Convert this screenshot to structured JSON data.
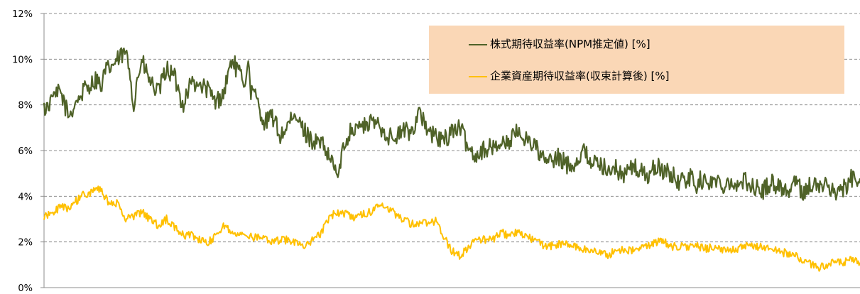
{
  "chart_data": {
    "type": "line",
    "title": "",
    "xlabel": "",
    "ylabel": "",
    "ylim": [
      0,
      12
    ],
    "y_ticks": [
      "0%",
      "2%",
      "4%",
      "6%",
      "8%",
      "10%",
      "12%"
    ],
    "grid": "horizontal dashed",
    "legend_position": "top-right",
    "x_index_range": [
      0,
      100
    ],
    "series": [
      {
        "name": "株式期待収益率(NPM推定値) [%]",
        "color": "#4f6228",
        "x": [
          0,
          2,
          3,
          5,
          6,
          8,
          10,
          11,
          12,
          13,
          14,
          15,
          16,
          17,
          18,
          20,
          21,
          22,
          23,
          24,
          26,
          27,
          28,
          29,
          30,
          31,
          32,
          33,
          34,
          35,
          36,
          37,
          38,
          39,
          40,
          41,
          42,
          43,
          44,
          45,
          46,
          47,
          48,
          49,
          50,
          51,
          52,
          53,
          54,
          55,
          56,
          57,
          58,
          60,
          61,
          62,
          63,
          64,
          65,
          66,
          67,
          68,
          69,
          70,
          71,
          72,
          73,
          74,
          75,
          76,
          77,
          78,
          79,
          80,
          81,
          82,
          83,
          84,
          85,
          86,
          87,
          88,
          89,
          90,
          91,
          92,
          93,
          94,
          95,
          96,
          97,
          98,
          99,
          100
        ],
        "values": [
          7.8,
          8.6,
          7.5,
          8.7,
          9.0,
          9.6,
          10.3,
          8.6,
          9.9,
          9.0,
          8.5,
          9.6,
          9.2,
          8.0,
          9.0,
          8.7,
          8.1,
          8.5,
          10.0,
          9.3,
          8.3,
          7.2,
          7.5,
          6.6,
          7.2,
          7.4,
          6.8,
          6.4,
          6.3,
          5.6,
          5.2,
          6.4,
          7.4,
          7.0,
          7.2,
          7.2,
          6.7,
          6.5,
          6.9,
          6.8,
          7.7,
          6.8,
          6.6,
          6.4,
          6.9,
          7.0,
          6.1,
          5.8,
          6.1,
          6.1,
          6.4,
          6.4,
          6.8,
          6.3,
          5.7,
          5.2,
          5.7,
          5.4,
          5.4,
          6.0,
          5.6,
          5.3,
          5.4,
          5.2,
          4.9,
          5.3,
          5.1,
          4.9,
          5.3,
          5.1,
          4.9,
          4.6,
          4.8,
          4.9,
          4.6,
          4.7,
          4.5,
          4.7,
          4.4,
          4.7,
          4.4,
          4.2,
          4.6,
          4.5,
          4.2,
          4.6,
          4.2,
          4.5,
          4.4,
          4.5,
          4.2,
          4.3,
          4.8,
          4.4
        ],
        "lw": 2.2,
        "spike_x": [
          1,
          4,
          7,
          11,
          19,
          25,
          36,
          38,
          43,
          46,
          56,
          62,
          69,
          80
        ],
        "spike_y": [
          8.4,
          8.2,
          8.5,
          7.7,
          8.9,
          10.0,
          4.8,
          6.6,
          6.4,
          7.9,
          6.2,
          5.9,
          4.9,
          4.1
        ]
      },
      {
        "name": "企業資産期待収益率(収束計算後) [%]",
        "color": "#ffc000",
        "x": [
          0,
          2,
          3,
          5,
          7,
          8,
          9,
          10,
          12,
          14,
          15,
          16,
          17,
          18,
          20,
          21,
          22,
          24,
          25,
          26,
          27,
          28,
          30,
          31,
          32,
          34,
          35,
          36,
          37,
          38,
          40,
          41,
          42,
          44,
          45,
          46,
          48,
          49,
          50,
          51,
          52,
          53,
          54,
          55,
          56,
          57,
          58,
          60,
          61,
          62,
          63,
          64,
          65,
          66,
          67,
          68,
          69,
          70,
          71,
          72,
          73,
          75,
          76,
          77,
          78,
          79,
          80,
          81,
          82,
          83,
          84,
          85,
          86,
          87,
          88,
          89,
          90,
          91,
          92,
          93,
          94,
          95,
          96,
          97,
          98,
          99,
          100
        ],
        "values": [
          3.1,
          3.5,
          3.5,
          4.1,
          4.3,
          3.6,
          3.7,
          3.0,
          3.3,
          2.7,
          3.0,
          2.6,
          2.3,
          2.3,
          1.9,
          2.3,
          2.7,
          2.3,
          2.2,
          2.2,
          2.1,
          2.0,
          2.1,
          2.0,
          1.8,
          2.4,
          3.1,
          3.3,
          3.2,
          3.1,
          3.3,
          3.6,
          3.5,
          3.0,
          2.8,
          2.8,
          2.9,
          2.2,
          1.6,
          1.4,
          1.8,
          2.1,
          2.1,
          2.1,
          2.4,
          2.3,
          2.4,
          2.1,
          1.9,
          1.8,
          1.9,
          1.9,
          1.8,
          1.7,
          1.6,
          1.6,
          1.4,
          1.6,
          1.7,
          1.6,
          1.7,
          2.0,
          2.0,
          1.8,
          1.8,
          1.8,
          1.8,
          1.7,
          1.8,
          1.6,
          1.7,
          1.7,
          1.8,
          1.8,
          1.8,
          1.7,
          1.6,
          1.5,
          1.4,
          1.2,
          1.0,
          0.9,
          1.0,
          1.1,
          1.1,
          1.2,
          1.1
        ],
        "lw": 2.0,
        "spike_x": [],
        "spike_y": []
      }
    ]
  }
}
